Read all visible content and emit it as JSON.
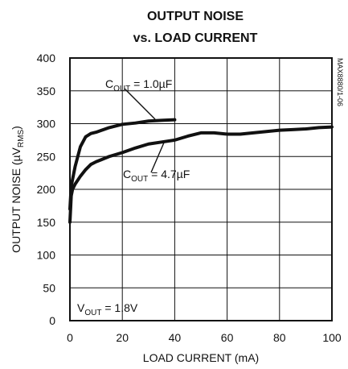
{
  "chart_data": {
    "type": "line",
    "title": {
      "line1": "OUTPUT NOISE",
      "line2": "vs. LOAD CURRENT"
    },
    "xlabel": "LOAD CURRENT (mA)",
    "ylabel": {
      "prefix": "OUTPUT NOISE (",
      "mu": "µ",
      "unit": "V",
      "subscript": "RMS",
      "suffix": ")"
    },
    "xlim": [
      0,
      100
    ],
    "ylim": [
      0,
      400
    ],
    "grid": true,
    "x_ticks": [
      "0",
      "20",
      "40",
      "60",
      "80",
      "100"
    ],
    "y_ticks": [
      "0",
      "50",
      "100",
      "150",
      "200",
      "250",
      "300",
      "350",
      "400"
    ],
    "series": [
      {
        "name": "C_OUT = 1.0µF",
        "x": [
          0,
          0.5,
          1,
          2,
          4,
          6,
          8,
          10,
          15,
          20,
          25,
          30,
          35,
          40
        ],
        "y": [
          170,
          205,
          215,
          235,
          265,
          280,
          285,
          287,
          294,
          299,
          301,
          304,
          305,
          306
        ]
      },
      {
        "name": "C_OUT = 4.7µF",
        "x": [
          0,
          0.5,
          1,
          2,
          4,
          6,
          8,
          10,
          15,
          20,
          25,
          30,
          35,
          40,
          45,
          50,
          55,
          60,
          65,
          70,
          75,
          80,
          85,
          90,
          95,
          100
        ],
        "y": [
          150,
          190,
          200,
          208,
          220,
          230,
          238,
          242,
          250,
          256,
          263,
          269,
          272,
          275,
          281,
          286,
          286,
          284,
          284,
          286,
          288,
          290,
          291,
          292,
          294,
          295
        ]
      }
    ],
    "annotations": {
      "cout1": {
        "main": "C",
        "subscript": "OUT",
        "value": " = 1.0µF"
      },
      "cout47": {
        "main": "C",
        "subscript": "OUT",
        "value": " = 4.7µF"
      },
      "vout": {
        "main": "V",
        "subscript": "OUT",
        "value": " = 1.8V"
      },
      "part_code": "MAX8880/1-06"
    }
  }
}
